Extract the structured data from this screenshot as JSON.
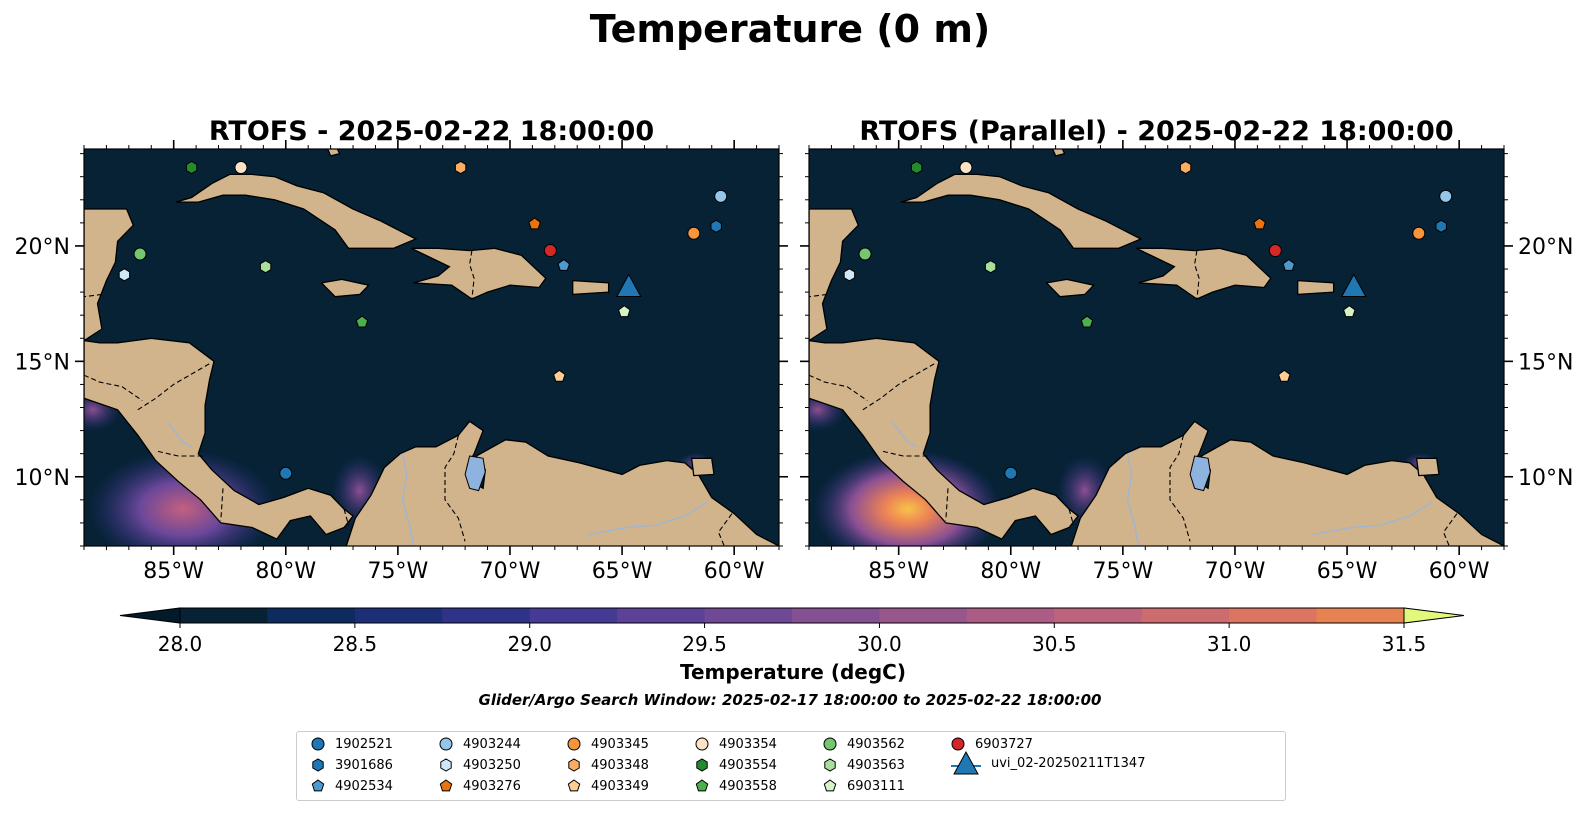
{
  "figure_title": "Temperature (0 m)",
  "panels": [
    {
      "title": "RTOFS - 2025-02-22 18:00:00"
    },
    {
      "title": "RTOFS (Parallel) - 2025-02-22 18:00:00"
    }
  ],
  "axes": {
    "x_ticks": [
      "85°W",
      "80°W",
      "75°W",
      "70°W",
      "65°W",
      "60°W"
    ],
    "x_tick_values": [
      -85,
      -80,
      -75,
      -70,
      -65,
      -60
    ],
    "y_ticks": [
      "10°N",
      "15°N",
      "20°N"
    ],
    "y_tick_values": [
      10,
      15,
      20
    ],
    "lon_range": [
      -89,
      -58
    ],
    "lat_range": [
      7,
      24.2
    ]
  },
  "colorbar": {
    "label": "Temperature (degC)",
    "ticks": [
      "28.0",
      "28.5",
      "29.0",
      "29.5",
      "30.0",
      "30.5",
      "31.0",
      "31.5"
    ],
    "range": [
      28.0,
      31.5
    ],
    "step": 0.25,
    "colors": [
      "#062234",
      "#0d2b5e",
      "#1d2e78",
      "#2f3289",
      "#453a94",
      "#5b4197",
      "#704996",
      "#845092",
      "#98578c",
      "#ab5d85",
      "#bd637b",
      "#cd6c6f",
      "#db7561",
      "#e78352",
      "#f19347",
      "#f7a742",
      "#f8bc47",
      "#f6d254"
    ],
    "extend_low_color": "#031a2a",
    "extend_high_color": "#e2f87a"
  },
  "search_window": "Glider/Argo Search Window: 2025-02-17 18:00:00 to 2025-02-22 18:00:00",
  "legend": [
    {
      "label": "1902521",
      "marker": "circle",
      "color": "#1f77b4"
    },
    {
      "label": "3901686",
      "marker": "hexagon",
      "color": "#1f77b4"
    },
    {
      "label": "4902534",
      "marker": "pentagon",
      "color": "#4d9ad0"
    },
    {
      "label": "4903244",
      "marker": "circle",
      "color": "#95c6ea"
    },
    {
      "label": "4903250",
      "marker": "hexagon",
      "color": "#cfe8f8"
    },
    {
      "label": "4903276",
      "marker": "pentagon",
      "color": "#e8730f"
    },
    {
      "label": "4903345",
      "marker": "circle",
      "color": "#f8943c"
    },
    {
      "label": "4903348",
      "marker": "hexagon",
      "color": "#fbad63"
    },
    {
      "label": "4903349",
      "marker": "pentagon",
      "color": "#fdcd98"
    },
    {
      "label": "4903354",
      "marker": "circle",
      "color": "#fde3c6"
    },
    {
      "label": "4903554",
      "marker": "hexagon",
      "color": "#238b2e"
    },
    {
      "label": "4903558",
      "marker": "pentagon",
      "color": "#4cb04f"
    },
    {
      "label": "4903562",
      "marker": "circle",
      "color": "#74c66f"
    },
    {
      "label": "4903563",
      "marker": "hexagon",
      "color": "#a8e09b"
    },
    {
      "label": "6903111",
      "marker": "pentagon",
      "color": "#d6f3c8"
    },
    {
      "label": "6903727",
      "marker": "circle",
      "color": "#d62728"
    },
    {
      "label": "uvi_02-20250211T1347",
      "marker": "triangle",
      "color": "#1f77b4"
    }
  ],
  "observations": [
    {
      "id": "1902521",
      "lon": -80.0,
      "lat": 10.15
    },
    {
      "id": "3901686",
      "lon": -60.8,
      "lat": 20.85
    },
    {
      "id": "4902534",
      "lon": -67.6,
      "lat": 19.15
    },
    {
      "id": "4903244",
      "lon": -60.6,
      "lat": 22.15
    },
    {
      "id": "4903250",
      "lon": -87.2,
      "lat": 18.75
    },
    {
      "id": "4903276",
      "lon": -68.9,
      "lat": 20.95
    },
    {
      "id": "4903345",
      "lon": -61.8,
      "lat": 20.55
    },
    {
      "id": "4903348",
      "lon": -72.2,
      "lat": 23.4
    },
    {
      "id": "4903349",
      "lon": -67.8,
      "lat": 14.35
    },
    {
      "id": "4903354",
      "lon": -82.0,
      "lat": 23.4
    },
    {
      "id": "4903554",
      "lon": -84.2,
      "lat": 23.4
    },
    {
      "id": "4903558",
      "lon": -76.6,
      "lat": 16.7
    },
    {
      "id": "4903562",
      "lon": -86.5,
      "lat": 19.65
    },
    {
      "id": "4903563",
      "lon": -80.9,
      "lat": 19.1
    },
    {
      "id": "6903111",
      "lon": -64.9,
      "lat": 17.15
    },
    {
      "id": "6903727",
      "lon": -68.2,
      "lat": 19.8
    },
    {
      "id": "uvi_02-20250211T1347",
      "lon": -64.7,
      "lat": 18.2
    }
  ]
}
